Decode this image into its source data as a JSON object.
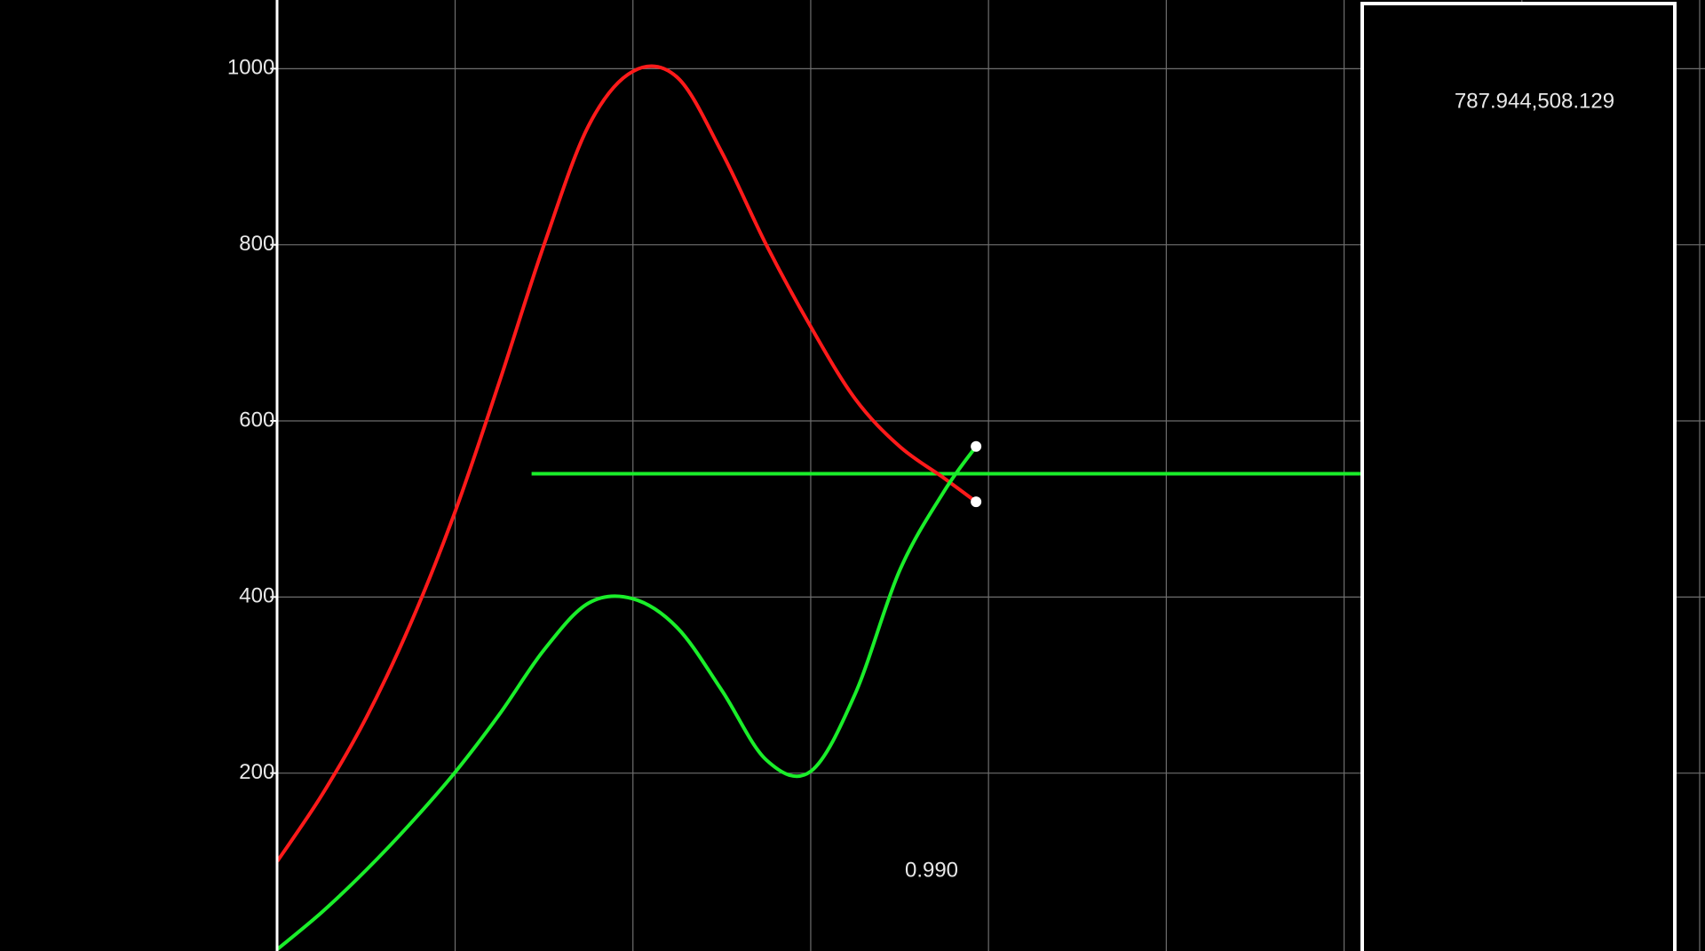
{
  "chart_data": {
    "type": "line",
    "x": [
      0,
      0.25,
      0.5,
      0.75,
      1,
      1.25,
      1.5,
      1.75,
      2,
      2.25,
      2.5,
      2.75,
      3,
      3.25,
      3.5,
      3.75,
      3.93
    ],
    "series": [
      {
        "name": "red",
        "color": "#ff1a1a",
        "values": [
          100,
          175,
          263,
          370,
          497,
          645,
          800,
          935,
          997,
          990,
          905,
          800,
          707,
          625,
          571,
          535,
          508.129
        ]
      },
      {
        "name": "green",
        "color": "#1aee2a",
        "values": [
          0,
          42,
          90,
          143,
          201,
          267,
          340,
          393,
          398,
          365,
          294,
          215,
          202,
          290,
          430,
          520,
          571
        ]
      }
    ],
    "xlim": [
      -1.56,
      8.03
    ],
    "xgrid": [
      1,
      2,
      3,
      4,
      5,
      6,
      7,
      8
    ],
    "ylim": [
      0,
      1078
    ],
    "yticks": [
      200,
      400,
      600,
      800,
      1000
    ],
    "grid": true,
    "hline": {
      "value": 540,
      "from": 1.43,
      "to": 6.11,
      "color": "#1aee2a"
    },
    "annotation": "0.990",
    "panel_text": "787.944,508.129"
  }
}
